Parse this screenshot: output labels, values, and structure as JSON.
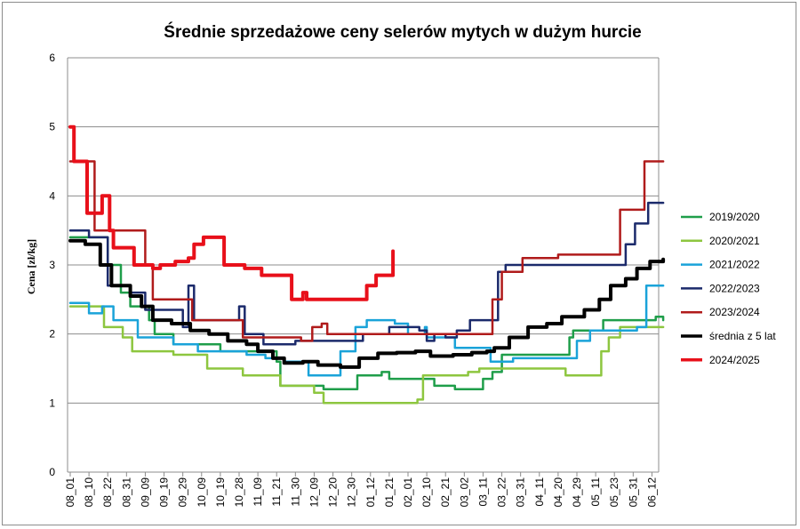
{
  "chart_data": {
    "type": "line",
    "title": "Średnie sprzedażowe ceny selerów mytych w dużym hurcie",
    "ylabel": "Cena [zł/kg]",
    "xlabel": "",
    "ylim": [
      0,
      6
    ],
    "yticks": [
      "0",
      "1",
      "2",
      "3",
      "4",
      "5",
      "6"
    ],
    "grid": "horizontal",
    "legend_position": "right",
    "categories": [
      "08_01",
      "08_10",
      "08_22",
      "08_31",
      "09_09",
      "09_19",
      "09_29",
      "10_09",
      "10_19",
      "10_28",
      "11_09",
      "11_21",
      "11_30",
      "12_09",
      "12_20",
      "12_30",
      "01_12",
      "01_21",
      "02_01",
      "02_10",
      "02_21",
      "03_02",
      "03_11",
      "03_22",
      "03_31",
      "04_11",
      "04_20",
      "04_29",
      "05_11",
      "05_23",
      "05_31",
      "06_12"
    ],
    "series": [
      {
        "name": "2019/2020",
        "color": "#1f9e4a",
        "width": 2.5,
        "points": [
          [
            0,
            3.4
          ],
          [
            2,
            3.0
          ],
          [
            2.7,
            2.6
          ],
          [
            3.2,
            2.4
          ],
          [
            4.2,
            2.2
          ],
          [
            4.5,
            2.0
          ],
          [
            5.5,
            1.85
          ],
          [
            8,
            1.75
          ],
          [
            9,
            1.75
          ],
          [
            11,
            1.6
          ],
          [
            11.2,
            1.25
          ],
          [
            13.5,
            1.2
          ],
          [
            15,
            1.2
          ],
          [
            15.3,
            1.4
          ],
          [
            16.6,
            1.45
          ],
          [
            17,
            1.35
          ],
          [
            19,
            1.35
          ],
          [
            19.4,
            1.25
          ],
          [
            20.5,
            1.2
          ],
          [
            22,
            1.35
          ],
          [
            22.5,
            1.45
          ],
          [
            23,
            1.7
          ],
          [
            26.6,
            1.95
          ],
          [
            26.8,
            2.05
          ],
          [
            28.4,
            2.2
          ],
          [
            31.2,
            2.25
          ],
          [
            31.6,
            2.2
          ]
        ]
      },
      {
        "name": "2020/2021",
        "color": "#8dc63f",
        "width": 2.5,
        "points": [
          [
            0,
            2.4
          ],
          [
            1.5,
            2.4
          ],
          [
            1.8,
            2.1
          ],
          [
            2.8,
            1.95
          ],
          [
            3.3,
            1.75
          ],
          [
            5.5,
            1.7
          ],
          [
            7.3,
            1.5
          ],
          [
            9.2,
            1.4
          ],
          [
            11.2,
            1.25
          ],
          [
            13,
            1.15
          ],
          [
            13.5,
            1.0
          ],
          [
            18,
            1.0
          ],
          [
            18.5,
            1.05
          ],
          [
            18.8,
            1.4
          ],
          [
            21.2,
            1.45
          ],
          [
            21.8,
            1.5
          ],
          [
            26,
            1.5
          ],
          [
            26.4,
            1.4
          ],
          [
            28,
            1.4
          ],
          [
            28.3,
            1.75
          ],
          [
            28.7,
            1.95
          ],
          [
            29.3,
            2.1
          ],
          [
            31.6,
            2.1
          ]
        ]
      },
      {
        "name": "2021/2022",
        "color": "#1aa3d9",
        "width": 2.5,
        "points": [
          [
            0,
            2.45
          ],
          [
            0.9,
            2.45
          ],
          [
            1,
            2.3
          ],
          [
            1.7,
            2.4
          ],
          [
            2.3,
            2.2
          ],
          [
            3,
            2.2
          ],
          [
            3.6,
            1.95
          ],
          [
            5.5,
            1.85
          ],
          [
            6.8,
            1.75
          ],
          [
            9.4,
            1.7
          ],
          [
            10.4,
            1.65
          ],
          [
            11.4,
            1.6
          ],
          [
            12.7,
            1.4
          ],
          [
            14.4,
            1.75
          ],
          [
            15.2,
            2.1
          ],
          [
            15.8,
            2.2
          ],
          [
            17.3,
            2.15
          ],
          [
            18,
            2.0
          ],
          [
            18.9,
            2.1
          ],
          [
            19,
            1.95
          ],
          [
            19.5,
            1.95
          ],
          [
            20.5,
            1.8
          ],
          [
            22.4,
            1.6
          ],
          [
            23.6,
            1.65
          ],
          [
            27,
            1.9
          ],
          [
            27.7,
            2.05
          ],
          [
            30.2,
            2.1
          ],
          [
            30.7,
            2.7
          ],
          [
            31.6,
            2.7
          ]
        ]
      },
      {
        "name": "2022/2023",
        "color": "#1b2a6b",
        "width": 2.5,
        "points": [
          [
            0,
            3.5
          ],
          [
            0.8,
            3.5
          ],
          [
            1,
            3.4
          ],
          [
            1.8,
            3.4
          ],
          [
            2,
            2.7
          ],
          [
            3.2,
            2.6
          ],
          [
            4,
            2.35
          ],
          [
            6,
            2.1
          ],
          [
            6.3,
            2.7
          ],
          [
            6.6,
            2.2
          ],
          [
            9,
            2.4
          ],
          [
            9.3,
            2.0
          ],
          [
            10.3,
            1.85
          ],
          [
            12,
            1.9
          ],
          [
            15,
            1.9
          ],
          [
            15.6,
            2.0
          ],
          [
            17,
            2.1
          ],
          [
            18.6,
            2.05
          ],
          [
            19,
            1.9
          ],
          [
            19.4,
            2.0
          ],
          [
            20,
            1.95
          ],
          [
            20.6,
            2.05
          ],
          [
            21.3,
            2.2
          ],
          [
            22.8,
            2.9
          ],
          [
            23.2,
            3.0
          ],
          [
            29,
            3.0
          ],
          [
            29.6,
            3.3
          ],
          [
            30.1,
            3.6
          ],
          [
            30.8,
            3.9
          ],
          [
            31.6,
            3.9
          ]
        ]
      },
      {
        "name": "2023/2024",
        "color": "#b01b1b",
        "width": 2.5,
        "points": [
          [
            0,
            4.5
          ],
          [
            1,
            4.5
          ],
          [
            1.3,
            3.5
          ],
          [
            3.4,
            3.5
          ],
          [
            4,
            3.0
          ],
          [
            4.4,
            2.5
          ],
          [
            5.9,
            2.5
          ],
          [
            6.5,
            2.2
          ],
          [
            8.5,
            2.2
          ],
          [
            9.2,
            1.95
          ],
          [
            12.3,
            1.9
          ],
          [
            12.9,
            2.1
          ],
          [
            13.4,
            2.15
          ],
          [
            13.7,
            2.0
          ],
          [
            22,
            2.0
          ],
          [
            22.5,
            2.5
          ],
          [
            23,
            2.9
          ],
          [
            24.1,
            3.1
          ],
          [
            26,
            3.15
          ],
          [
            28.7,
            3.15
          ],
          [
            29.3,
            3.8
          ],
          [
            30.3,
            3.8
          ],
          [
            30.6,
            4.5
          ],
          [
            31.6,
            4.5
          ]
        ]
      },
      {
        "name": "średnia z 5 lat",
        "color": "#000000",
        "width": 4,
        "points": [
          [
            0,
            3.35
          ],
          [
            0.8,
            3.3
          ],
          [
            1.6,
            3.0
          ],
          [
            2.2,
            2.7
          ],
          [
            3.2,
            2.55
          ],
          [
            3.8,
            2.4
          ],
          [
            4.4,
            2.2
          ],
          [
            5.4,
            2.15
          ],
          [
            6.4,
            2.05
          ],
          [
            7.4,
            2.0
          ],
          [
            8.4,
            1.9
          ],
          [
            9.4,
            1.85
          ],
          [
            10,
            1.75
          ],
          [
            10.8,
            1.65
          ],
          [
            11.4,
            1.58
          ],
          [
            12.4,
            1.6
          ],
          [
            13.2,
            1.55
          ],
          [
            14.4,
            1.52
          ],
          [
            15.4,
            1.65
          ],
          [
            16.4,
            1.72
          ],
          [
            17.4,
            1.73
          ],
          [
            18.4,
            1.75
          ],
          [
            19.2,
            1.68
          ],
          [
            20.4,
            1.7
          ],
          [
            21.4,
            1.73
          ],
          [
            22.2,
            1.75
          ],
          [
            22.6,
            1.8
          ],
          [
            23.4,
            1.95
          ],
          [
            24.4,
            2.1
          ],
          [
            25.4,
            2.15
          ],
          [
            26.2,
            2.25
          ],
          [
            27.4,
            2.35
          ],
          [
            28.2,
            2.5
          ],
          [
            28.8,
            2.7
          ],
          [
            29.6,
            2.8
          ],
          [
            30.2,
            2.95
          ],
          [
            30.9,
            3.05
          ],
          [
            31.6,
            3.08
          ]
        ]
      },
      {
        "name": "2024/2025",
        "color": "#e8101a",
        "width": 4,
        "points": [
          [
            0,
            5.0
          ],
          [
            0.2,
            4.5
          ],
          [
            0.7,
            4.5
          ],
          [
            0.9,
            3.75
          ],
          [
            1.5,
            3.75
          ],
          [
            1.7,
            4.0
          ],
          [
            2.1,
            3.5
          ],
          [
            2.3,
            3.25
          ],
          [
            3.2,
            3.25
          ],
          [
            3.4,
            3.0
          ],
          [
            4,
            3.0
          ],
          [
            4.4,
            2.95
          ],
          [
            4.8,
            3.0
          ],
          [
            5.6,
            3.05
          ],
          [
            6.3,
            3.1
          ],
          [
            6.6,
            3.3
          ],
          [
            7.1,
            3.4
          ],
          [
            7.9,
            3.4
          ],
          [
            8.2,
            3.0
          ],
          [
            9.3,
            2.95
          ],
          [
            10.2,
            2.85
          ],
          [
            11.5,
            2.85
          ],
          [
            11.8,
            2.5
          ],
          [
            12.4,
            2.6
          ],
          [
            12.6,
            2.5
          ],
          [
            15.5,
            2.5
          ],
          [
            15.8,
            2.7
          ],
          [
            16.3,
            2.85
          ],
          [
            16.9,
            2.85
          ],
          [
            17.2,
            3.2
          ]
        ]
      }
    ]
  }
}
